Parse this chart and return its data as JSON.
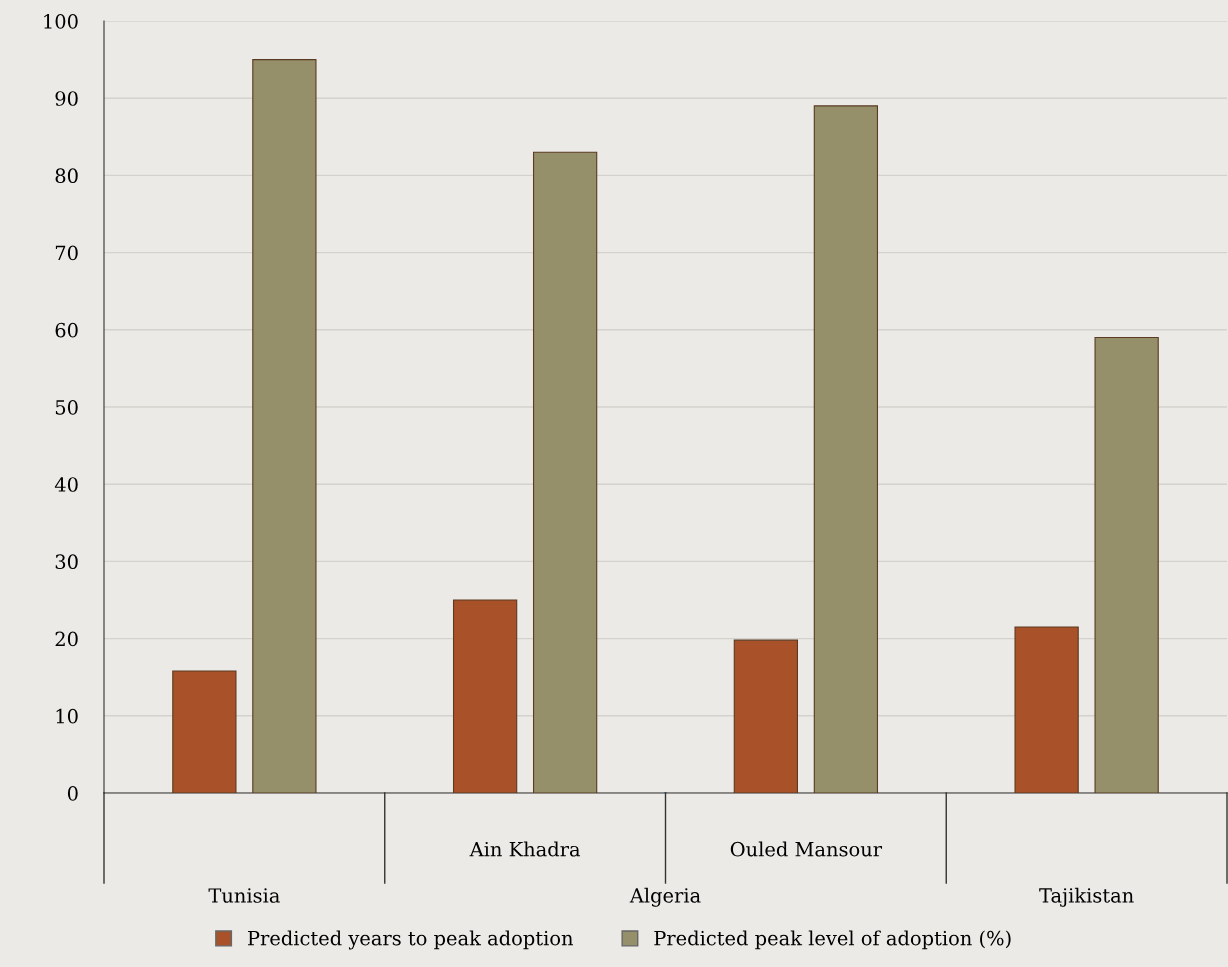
{
  "chart_data": {
    "type": "bar",
    "categories": [
      "Tunisia",
      "Ain Khadra",
      "Ouled Mansour",
      "Tajikistan"
    ],
    "series": [
      {
        "name": "Predicted years to peak adoption",
        "color": "#a9522a",
        "values": [
          15.8,
          25,
          19.8,
          21.5
        ]
      },
      {
        "name": "Predicted peak level of adoption (%)",
        "color": "#96906a",
        "values": [
          95,
          83,
          89,
          59
        ]
      }
    ],
    "annotations": [
      "Algeria"
    ],
    "ylim": [
      0,
      100
    ],
    "yticks": [
      0,
      10,
      20,
      30,
      40,
      50,
      60,
      70,
      80,
      90,
      100
    ],
    "grid": "y",
    "legend": "bottom"
  }
}
